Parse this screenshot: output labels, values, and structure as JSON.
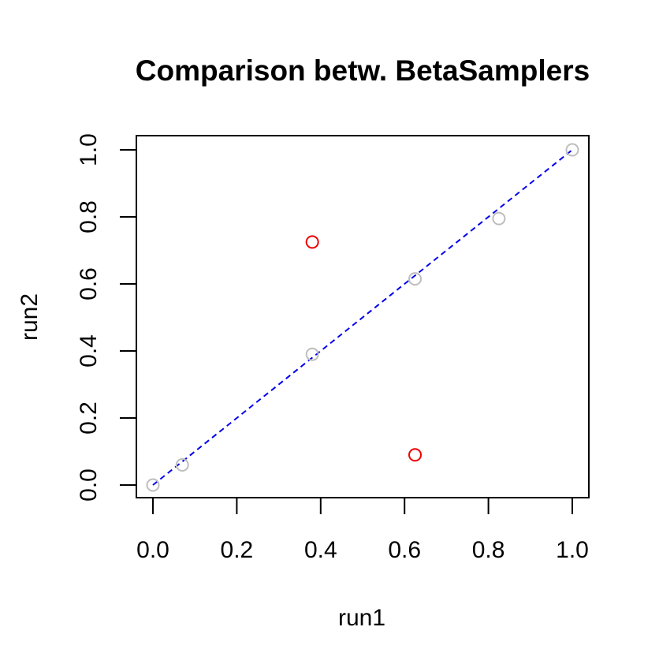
{
  "chart_data": {
    "type": "scatter",
    "title": "Comparison betw. BetaSamplers",
    "xlabel": "run1",
    "ylabel": "run2",
    "xlim": [
      0,
      1
    ],
    "ylim": [
      0,
      1
    ],
    "xticks": [
      "0.0",
      "0.2",
      "0.4",
      "0.6",
      "0.8",
      "1.0"
    ],
    "yticks": [
      "0.0",
      "0.2",
      "0.4",
      "0.6",
      "0.8",
      "1.0"
    ],
    "grid": false,
    "legend": "none",
    "reference_line": {
      "from": [
        0,
        0
      ],
      "to": [
        1,
        1
      ],
      "style": "dashed",
      "color": "#0000ee"
    },
    "series": [
      {
        "color": "#bebebe",
        "marker": "open-circle",
        "points": [
          {
            "x": 0.0,
            "y": 0.0
          },
          {
            "x": 0.07,
            "y": 0.06
          },
          {
            "x": 0.38,
            "y": 0.39
          },
          {
            "x": 0.625,
            "y": 0.615
          },
          {
            "x": 0.825,
            "y": 0.795
          },
          {
            "x": 1.0,
            "y": 1.0
          }
        ]
      },
      {
        "color": "#ee0000",
        "marker": "open-circle",
        "points": [
          {
            "x": 0.38,
            "y": 0.725
          },
          {
            "x": 0.625,
            "y": 0.09
          }
        ]
      }
    ]
  }
}
